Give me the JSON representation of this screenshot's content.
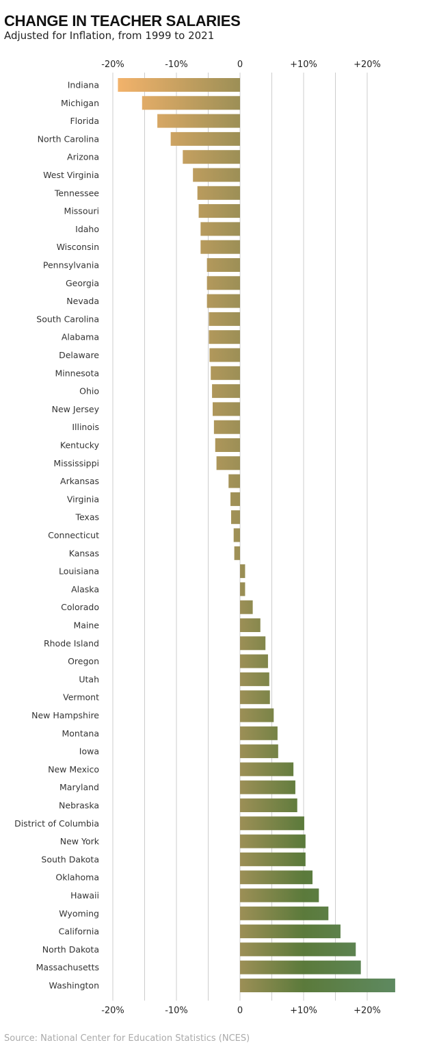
{
  "chart_data": {
    "type": "bar",
    "orientation": "horizontal",
    "title": "CHANGE IN TEACHER SALARIES",
    "subtitle": "Adjusted for Inflation, from 1999 to 2021",
    "source": "Source: National Center for Education Statistics (NCES)",
    "xlabel": "",
    "ylabel": "",
    "xlim": [
      -20,
      25
    ],
    "grid_step": 5,
    "ticks": [
      {
        "value": -20,
        "label": "-20%"
      },
      {
        "value": -10,
        "label": "-10%"
      },
      {
        "value": 0,
        "label": "0"
      },
      {
        "value": 10,
        "label": "+10%"
      },
      {
        "value": 20,
        "label": "+20%"
      }
    ],
    "categories": [
      "Indiana",
      "Michigan",
      "Florida",
      "North Carolina",
      "Arizona",
      "West Virginia",
      "Tennessee",
      "Missouri",
      "Idaho",
      "Wisconsin",
      "Pennsylvania",
      "Georgia",
      "Nevada",
      "South Carolina",
      "Alabama",
      "Delaware",
      "Minnesota",
      "Ohio",
      "New Jersey",
      "Illinois",
      "Kentucky",
      "Mississippi",
      "Arkansas",
      "Virginia",
      "Texas",
      "Connecticut",
      "Kansas",
      "Louisiana",
      "Alaska",
      "Colorado",
      "Maine",
      "Rhode Island",
      "Oregon",
      "Utah",
      "Vermont",
      "New Hampshire",
      "Montana",
      "Iowa",
      "New Mexico",
      "Maryland",
      "Nebraska",
      "District of Columbia",
      "New York",
      "South Dakota",
      "Oklahoma",
      "Hawaii",
      "Wyoming",
      "California",
      "North Dakota",
      "Massachusetts",
      "Washington"
    ],
    "values": [
      -19.2,
      -15.4,
      -13.0,
      -10.9,
      -9.0,
      -7.4,
      -6.7,
      -6.5,
      -6.2,
      -6.2,
      -5.2,
      -5.2,
      -5.2,
      -4.9,
      -4.9,
      -4.8,
      -4.6,
      -4.4,
      -4.3,
      -4.1,
      -3.9,
      -3.7,
      -1.8,
      -1.5,
      -1.4,
      -1.0,
      -0.9,
      0.8,
      0.8,
      2.0,
      3.2,
      4.0,
      4.4,
      4.6,
      4.7,
      5.3,
      5.9,
      6.0,
      8.4,
      8.7,
      9.0,
      10.1,
      10.3,
      10.3,
      11.4,
      12.4,
      13.9,
      15.8,
      18.2,
      19.0,
      24.4
    ],
    "colors": {
      "negative_end": "#f6b46c",
      "zero": "#9c8f56",
      "positive_mid": "#5b7a3b",
      "positive_end": "#5e8a62",
      "grid": "#cccccc"
    }
  }
}
